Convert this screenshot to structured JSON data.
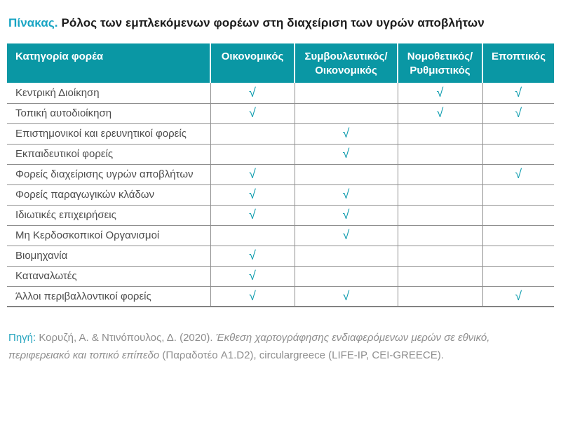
{
  "title": {
    "prefix": "Πίνακας.",
    "text": "Ρόλος των εμπλεκόμενων φορέων στη διαχείριση των υγρών αποβλήτων"
  },
  "table": {
    "check_glyph": "√",
    "columns": [
      "Κατηγορία φορέα",
      "Οικονομικός",
      "Συμβουλευτικός/\nΟικονομικός",
      "Νομοθετικός/\nΡυθμιστικός",
      "Εποπτικός"
    ],
    "rows": [
      {
        "label": "Κεντρική Διοίκηση",
        "checks": [
          true,
          false,
          true,
          true
        ]
      },
      {
        "label": "Τοπική αυτοδιοίκηση",
        "checks": [
          true,
          false,
          true,
          true
        ]
      },
      {
        "label": "Επιστημονικοί και ερευνητικοί φορείς",
        "checks": [
          false,
          true,
          false,
          false
        ]
      },
      {
        "label": "Εκπαιδευτικοί φορείς",
        "checks": [
          false,
          true,
          false,
          false
        ]
      },
      {
        "label": "Φορείς διαχείρισης υγρών αποβλήτων",
        "checks": [
          true,
          false,
          false,
          true
        ]
      },
      {
        "label": "Φορείς παραγωγικών κλάδων",
        "checks": [
          true,
          true,
          false,
          false
        ]
      },
      {
        "label": "Ιδιωτικές επιχειρήσεις",
        "checks": [
          true,
          true,
          false,
          false
        ]
      },
      {
        "label": "Μη Κερδοσκοπικοί Οργανισμοί",
        "checks": [
          false,
          true,
          false,
          false
        ]
      },
      {
        "label": "Βιομηχανία",
        "checks": [
          true,
          false,
          false,
          false
        ]
      },
      {
        "label": "Καταναλωτές",
        "checks": [
          true,
          false,
          false,
          false
        ]
      },
      {
        "label": "Άλλοι περιβαλλοντικοί φορείς",
        "checks": [
          true,
          true,
          false,
          true
        ]
      }
    ]
  },
  "source": {
    "label": "Πηγή:",
    "authors": "Κορυζή, Α. & Ντινόπουλος, Δ. (2020).",
    "work_title": "Έκθεση χαρτογράφησης ενδιαφερόμενων μερών σε εθνικό, περιφερειακό και τοπικό επίπεδο",
    "tail": "(Παραδοτέο A1.D2), circulargreece (LIFE-IP, CEI-GREECE)."
  },
  "colors": {
    "header_background": "#0a97a4",
    "header_text": "#ffffff",
    "title_accent": "#17a4c3",
    "check_mark": "#0b9bad",
    "row_text": "#4c4c4c",
    "grid_line": "#8f8f8f",
    "source_text": "#8e8e8e",
    "source_accent": "#2aa6c0"
  }
}
